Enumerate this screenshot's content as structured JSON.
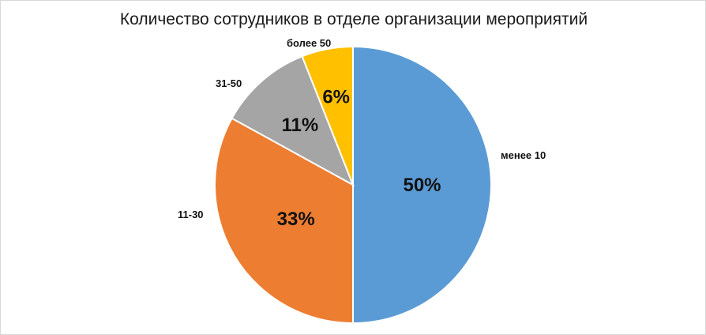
{
  "chart_data": {
    "type": "pie",
    "title": "Количество сотрудников в отделе организации мероприятий",
    "categories": [
      "менее 10",
      "11-30",
      "31-50",
      "более 50"
    ],
    "values": [
      50,
      33,
      11,
      6
    ],
    "value_labels": [
      "50%",
      "33%",
      "11%",
      "6%"
    ],
    "colors": [
      "#5b9bd5",
      "#ed7d31",
      "#a5a5a5",
      "#ffc000"
    ],
    "legend": "none"
  }
}
